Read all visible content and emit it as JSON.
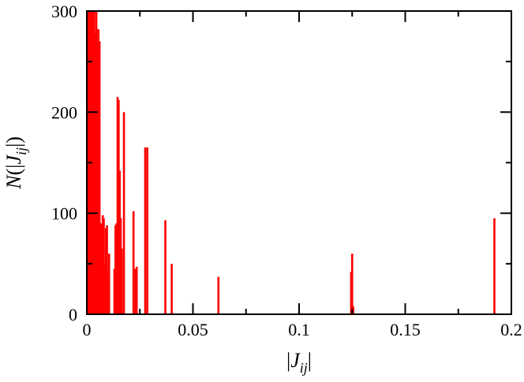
{
  "chart_data": {
    "type": "bar",
    "xlabel": "|J_ij|",
    "ylabel": "N(|J_ij|)",
    "xlim": [
      0,
      0.2
    ],
    "ylim": [
      0,
      300
    ],
    "x_ticks": [
      0,
      0.05,
      0.1,
      0.15,
      0.2
    ],
    "x_tick_labels": [
      "0",
      "0.05",
      "0.1",
      "0.15",
      "0.2"
    ],
    "y_ticks": [
      0,
      100,
      200,
      300
    ],
    "y_tick_labels": [
      "0",
      "100",
      "200",
      "300"
    ],
    "grid": false,
    "legend": "none",
    "bar_color": "#ff0000",
    "series": [
      {
        "x": [
          0.0005,
          0.001,
          0.0015,
          0.002,
          0.0025,
          0.003,
          0.0035,
          0.004,
          0.0045,
          0.005,
          0.0055,
          0.006,
          0.0065,
          0.007,
          0.0075,
          0.008,
          0.0085,
          0.009,
          0.0095,
          0.01,
          0.0105,
          0.013,
          0.0135,
          0.014,
          0.0145,
          0.015,
          0.0155,
          0.016,
          0.0165,
          0.0175,
          0.022,
          0.023,
          0.0235,
          0.0275,
          0.0285,
          0.037,
          0.04,
          0.062,
          0.1245,
          0.125,
          0.1255,
          0.192
        ],
        "values": [
          300,
          300,
          300,
          300,
          300,
          300,
          300,
          278,
          300,
          268,
          282,
          270,
          90,
          88,
          98,
          95,
          50,
          85,
          88,
          40,
          60,
          45,
          88,
          90,
          215,
          212,
          142,
          95,
          65,
          200,
          102,
          45,
          47,
          165,
          165,
          93,
          50,
          37,
          42,
          60,
          8,
          95
        ]
      }
    ]
  }
}
